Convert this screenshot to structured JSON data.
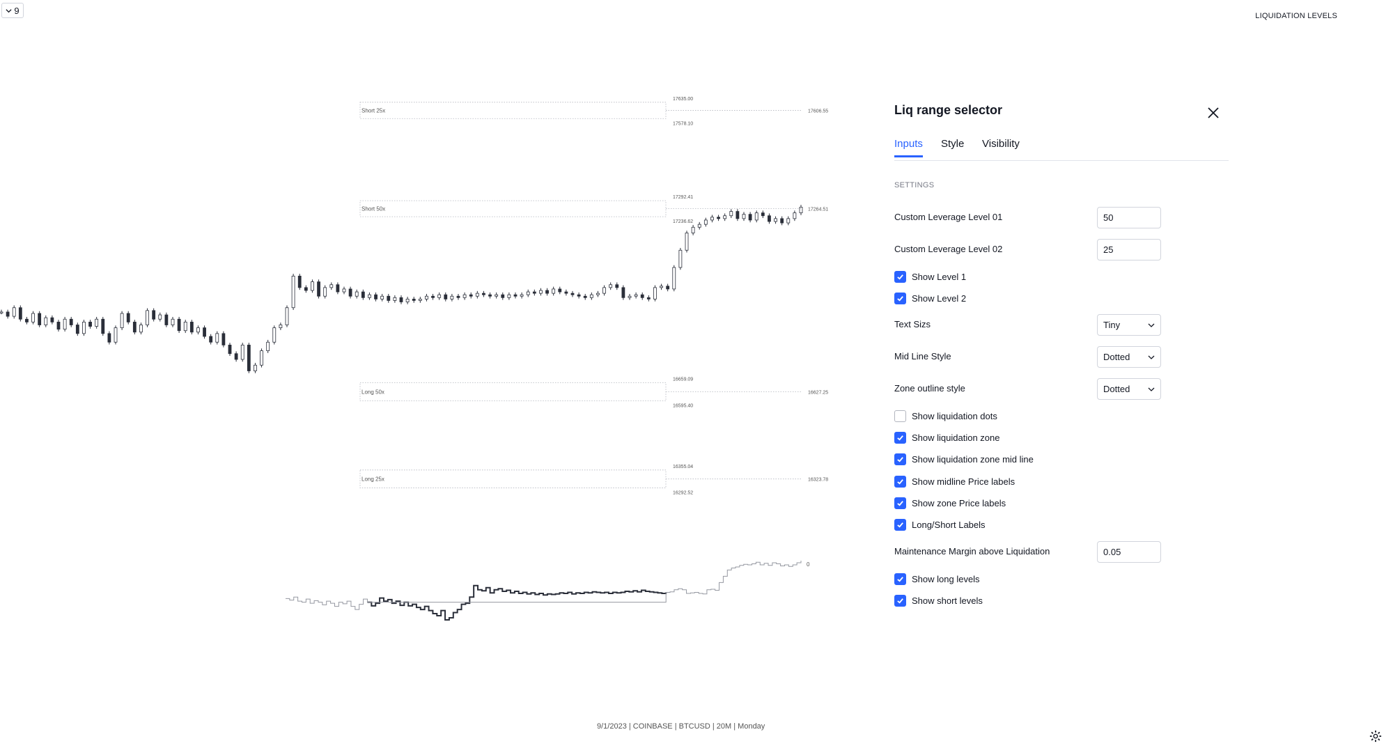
{
  "toolbar": {
    "toggle_value": "9"
  },
  "header": {
    "indicator_title": "LIQUIDATION LEVELS"
  },
  "chart_data": {
    "type": "candlestick",
    "price_range": [
      16100,
      17700
    ],
    "zones": [
      {
        "label": "Short 25x",
        "upper": "17635.00",
        "lower": "17578.10",
        "mid": "17606.55"
      },
      {
        "label": "Short 50x",
        "upper": "17292.41",
        "lower": "17236.62",
        "mid": "17264.51"
      },
      {
        "label": "Long 50x",
        "upper": "16659.09",
        "lower": "16595.40",
        "mid": "16627.25"
      },
      {
        "label": "Long 25x",
        "upper": "16355.04",
        "lower": "16292.52",
        "mid": "16323.78"
      }
    ],
    "close_series": [
      16905,
      16890,
      16920,
      16880,
      16870,
      16900,
      16860,
      16885,
      16870,
      16845,
      16880,
      16860,
      16830,
      16870,
      16855,
      16880,
      16830,
      16800,
      16850,
      16900,
      16870,
      16835,
      16860,
      16910,
      16880,
      16895,
      16860,
      16880,
      16840,
      16870,
      16835,
      16850,
      16820,
      16800,
      16830,
      16790,
      16760,
      16740,
      16790,
      16700,
      16720,
      16770,
      16800,
      16850,
      16860,
      16920,
      17030,
      16990,
      16980,
      17010,
      16960,
      16990,
      17000,
      16975,
      16985,
      16960,
      16975,
      16955,
      16965,
      16950,
      16960,
      16945,
      16955,
      16940,
      16950,
      16945,
      16950,
      16960,
      16955,
      16965,
      16950,
      16960,
      16955,
      16965,
      16960,
      16970,
      16965,
      16960,
      16965,
      16955,
      16965,
      16960,
      16965,
      16975,
      16970,
      16980,
      16970,
      16985,
      16975,
      16970,
      16965,
      16960,
      16955,
      16965,
      16970,
      16990,
      17000,
      16990,
      16955,
      16960,
      16965,
      16955,
      16950,
      16990,
      16995,
      16985,
      17060,
      17120,
      17180,
      17200,
      17210,
      17225,
      17235,
      17230,
      17240,
      17255,
      17230,
      17245,
      17225,
      17250,
      17240,
      17220,
      17230,
      17215,
      17230,
      17250,
      17270
    ],
    "oscillator_label": "0"
  },
  "footer": {
    "text": "9/1/2023 | COINBASE | BTCUSD | 20M | Monday"
  },
  "dialog": {
    "title": "Liq range selector",
    "tabs": [
      {
        "label": "Inputs",
        "active": true
      },
      {
        "label": "Style",
        "active": false
      },
      {
        "label": "Visibility",
        "active": false
      }
    ],
    "section": "SETTINGS",
    "leverage1": {
      "label": "Custom Leverage Level 01",
      "value": "50"
    },
    "leverage2": {
      "label": "Custom Leverage Level 02",
      "value": "25"
    },
    "show_level1": {
      "label": "Show Level 1",
      "checked": true
    },
    "show_level2": {
      "label": "Show Level 2",
      "checked": true
    },
    "text_size": {
      "label": "Text Sizs",
      "value": "Tiny"
    },
    "mid_line_style": {
      "label": "Mid Line Style",
      "value": "Dotted"
    },
    "zone_outline_style": {
      "label": "Zone outline style",
      "value": "Dotted"
    },
    "checkboxes": [
      {
        "label": "Show liquidation dots",
        "checked": false
      },
      {
        "label": "Show liquidation zone",
        "checked": true
      },
      {
        "label": "Show liquidation zone mid line",
        "checked": true
      },
      {
        "label": "Show midline Price labels",
        "checked": true
      },
      {
        "label": "Show zone Price labels",
        "checked": true
      },
      {
        "label": "Long/Short Labels",
        "checked": true
      }
    ],
    "maintenance": {
      "label": "Maintenance Margin above Liquidation",
      "value": "0.05"
    },
    "show_long": {
      "label": "Show long levels",
      "checked": true
    },
    "show_short": {
      "label": "Show short levels",
      "checked": true
    }
  }
}
